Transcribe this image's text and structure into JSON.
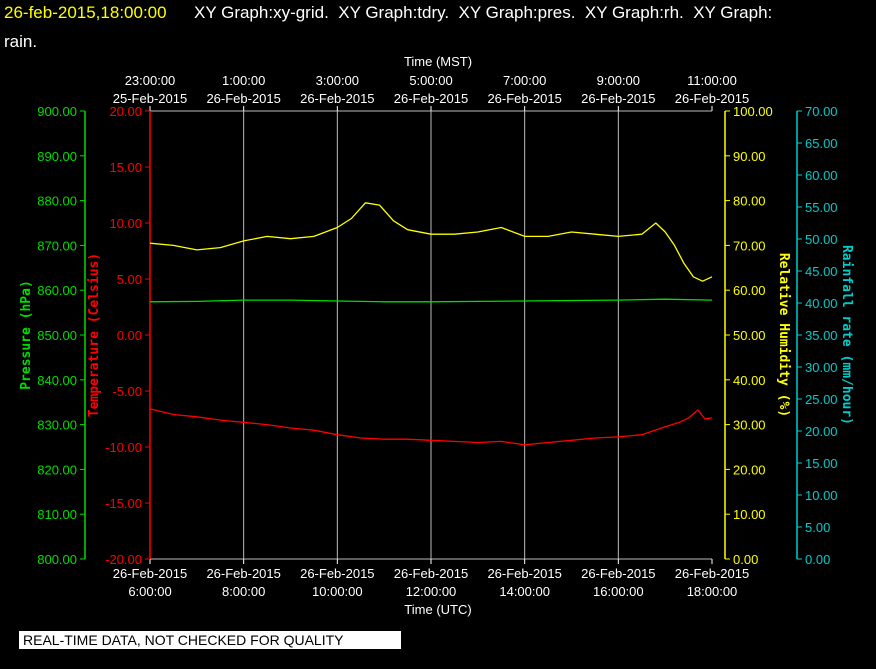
{
  "header": {
    "date": "26-feb-2015,18:00:00",
    "line1": "XY Graph:xy-grid.  XY Graph:tdry.  XY Graph:pres.  XY Graph:rh.  XY Graph:",
    "line2": "rain."
  },
  "notice": "REAL-TIME DATA, NOT CHECKED FOR QUALITY",
  "colors": {
    "background": "#000000",
    "pressure": "#00dd00",
    "temperature": "#ff0000",
    "humidity": "#ffff00",
    "rainfall": "#00cccc",
    "grid": "#bbbbbb",
    "text": "#ffffff"
  },
  "chart_data": {
    "type": "line",
    "grid": true,
    "x_top": {
      "title": "Time (MST)",
      "ticks": [
        {
          "time": "23:00:00",
          "date": "25-Feb-2015"
        },
        {
          "time": "1:00:00",
          "date": "26-Feb-2015"
        },
        {
          "time": "3:00:00",
          "date": "26-Feb-2015"
        },
        {
          "time": "5:00:00",
          "date": "26-Feb-2015"
        },
        {
          "time": "7:00:00",
          "date": "26-Feb-2015"
        },
        {
          "time": "9:00:00",
          "date": "26-Feb-2015"
        },
        {
          "time": "11:00:00",
          "date": "26-Feb-2015"
        }
      ]
    },
    "x_bottom": {
      "title": "Time (UTC)",
      "ticks": [
        {
          "date": "26-Feb-2015",
          "time": "6:00:00"
        },
        {
          "date": "26-Feb-2015",
          "time": "8:00:00"
        },
        {
          "date": "26-Feb-2015",
          "time": "10:00:00"
        },
        {
          "date": "26-Feb-2015",
          "time": "12:00:00"
        },
        {
          "date": "26-Feb-2015",
          "time": "14:00:00"
        },
        {
          "date": "26-Feb-2015",
          "time": "16:00:00"
        },
        {
          "date": "26-Feb-2015",
          "time": "18:00:00"
        }
      ],
      "hours": [
        6,
        8,
        10,
        12,
        14,
        16,
        18
      ],
      "range": [
        6,
        18
      ]
    },
    "axes": {
      "pressure": {
        "label": "Pressure (hPa)",
        "range": [
          800,
          900
        ],
        "ticks": [
          "900.00",
          "890.00",
          "880.00",
          "870.00",
          "860.00",
          "850.00",
          "840.00",
          "830.00",
          "820.00",
          "810.00",
          "800.00"
        ]
      },
      "temperature": {
        "label": "Temperature (Celsius)",
        "range": [
          -20,
          20
        ],
        "ticks": [
          "20.00",
          "15.00",
          "10.00",
          "5.00",
          "0.00",
          "-5.00",
          "-10.00",
          "-15.00",
          "-20.00"
        ]
      },
      "humidity": {
        "label": "Relative Humidity (%)",
        "range": [
          0,
          100
        ],
        "ticks": [
          "100.00",
          "90.00",
          "80.00",
          "70.00",
          "60.00",
          "50.00",
          "40.00",
          "30.00",
          "20.00",
          "10.00",
          "0.00"
        ]
      },
      "rainfall": {
        "label": "Rainfall rate (mm/hour)",
        "range": [
          0,
          70
        ],
        "ticks": [
          "70.00",
          "65.00",
          "60.00",
          "55.00",
          "50.00",
          "45.00",
          "40.00",
          "35.00",
          "30.00",
          "25.00",
          "20.00",
          "15.00",
          "10.00",
          "5.00",
          "0.00"
        ]
      }
    },
    "series": [
      {
        "key": "humidity",
        "axis": "humidity",
        "x": [
          6.0,
          6.5,
          7.0,
          7.5,
          8.0,
          8.5,
          9.0,
          9.5,
          10.0,
          10.3,
          10.6,
          10.9,
          11.2,
          11.5,
          12.0,
          12.5,
          13.0,
          13.5,
          14.0,
          14.5,
          15.0,
          15.5,
          16.0,
          16.5,
          16.8,
          17.0,
          17.2,
          17.4,
          17.6,
          17.8,
          18.0
        ],
        "y": [
          70.5,
          70,
          69,
          69.5,
          71,
          72,
          71.5,
          72,
          74,
          76,
          79.5,
          79,
          75.5,
          73.5,
          72.5,
          72.5,
          73,
          74,
          72,
          72,
          73,
          72.5,
          72,
          72.5,
          75,
          73,
          70,
          66,
          63,
          62,
          63
        ]
      },
      {
        "key": "pressure",
        "axis": "pressure",
        "x": [
          6.0,
          7.0,
          8.0,
          9.0,
          10.0,
          11.0,
          12.0,
          13.0,
          14.0,
          15.0,
          16.0,
          17.0,
          18.0
        ],
        "y": [
          857.4,
          857.5,
          857.8,
          857.8,
          857.6,
          857.4,
          857.4,
          857.5,
          857.6,
          857.7,
          857.8,
          858.0,
          857.8
        ]
      },
      {
        "key": "temperature",
        "axis": "temperature",
        "x": [
          6.0,
          6.5,
          7.0,
          7.5,
          8.0,
          8.5,
          9.0,
          9.5,
          10.0,
          10.5,
          11.0,
          11.5,
          12.0,
          12.5,
          13.0,
          13.5,
          14.0,
          14.5,
          15.0,
          15.5,
          16.0,
          16.5,
          17.0,
          17.3,
          17.5,
          17.7,
          17.85,
          18.0
        ],
        "y": [
          -6.6,
          -7.1,
          -7.3,
          -7.6,
          -7.8,
          -8.0,
          -8.3,
          -8.5,
          -8.9,
          -9.2,
          -9.3,
          -9.3,
          -9.4,
          -9.5,
          -9.6,
          -9.5,
          -9.8,
          -9.6,
          -9.4,
          -9.2,
          -9.1,
          -8.9,
          -8.2,
          -7.8,
          -7.4,
          -6.7,
          -7.5,
          -7.4
        ]
      }
    ]
  }
}
